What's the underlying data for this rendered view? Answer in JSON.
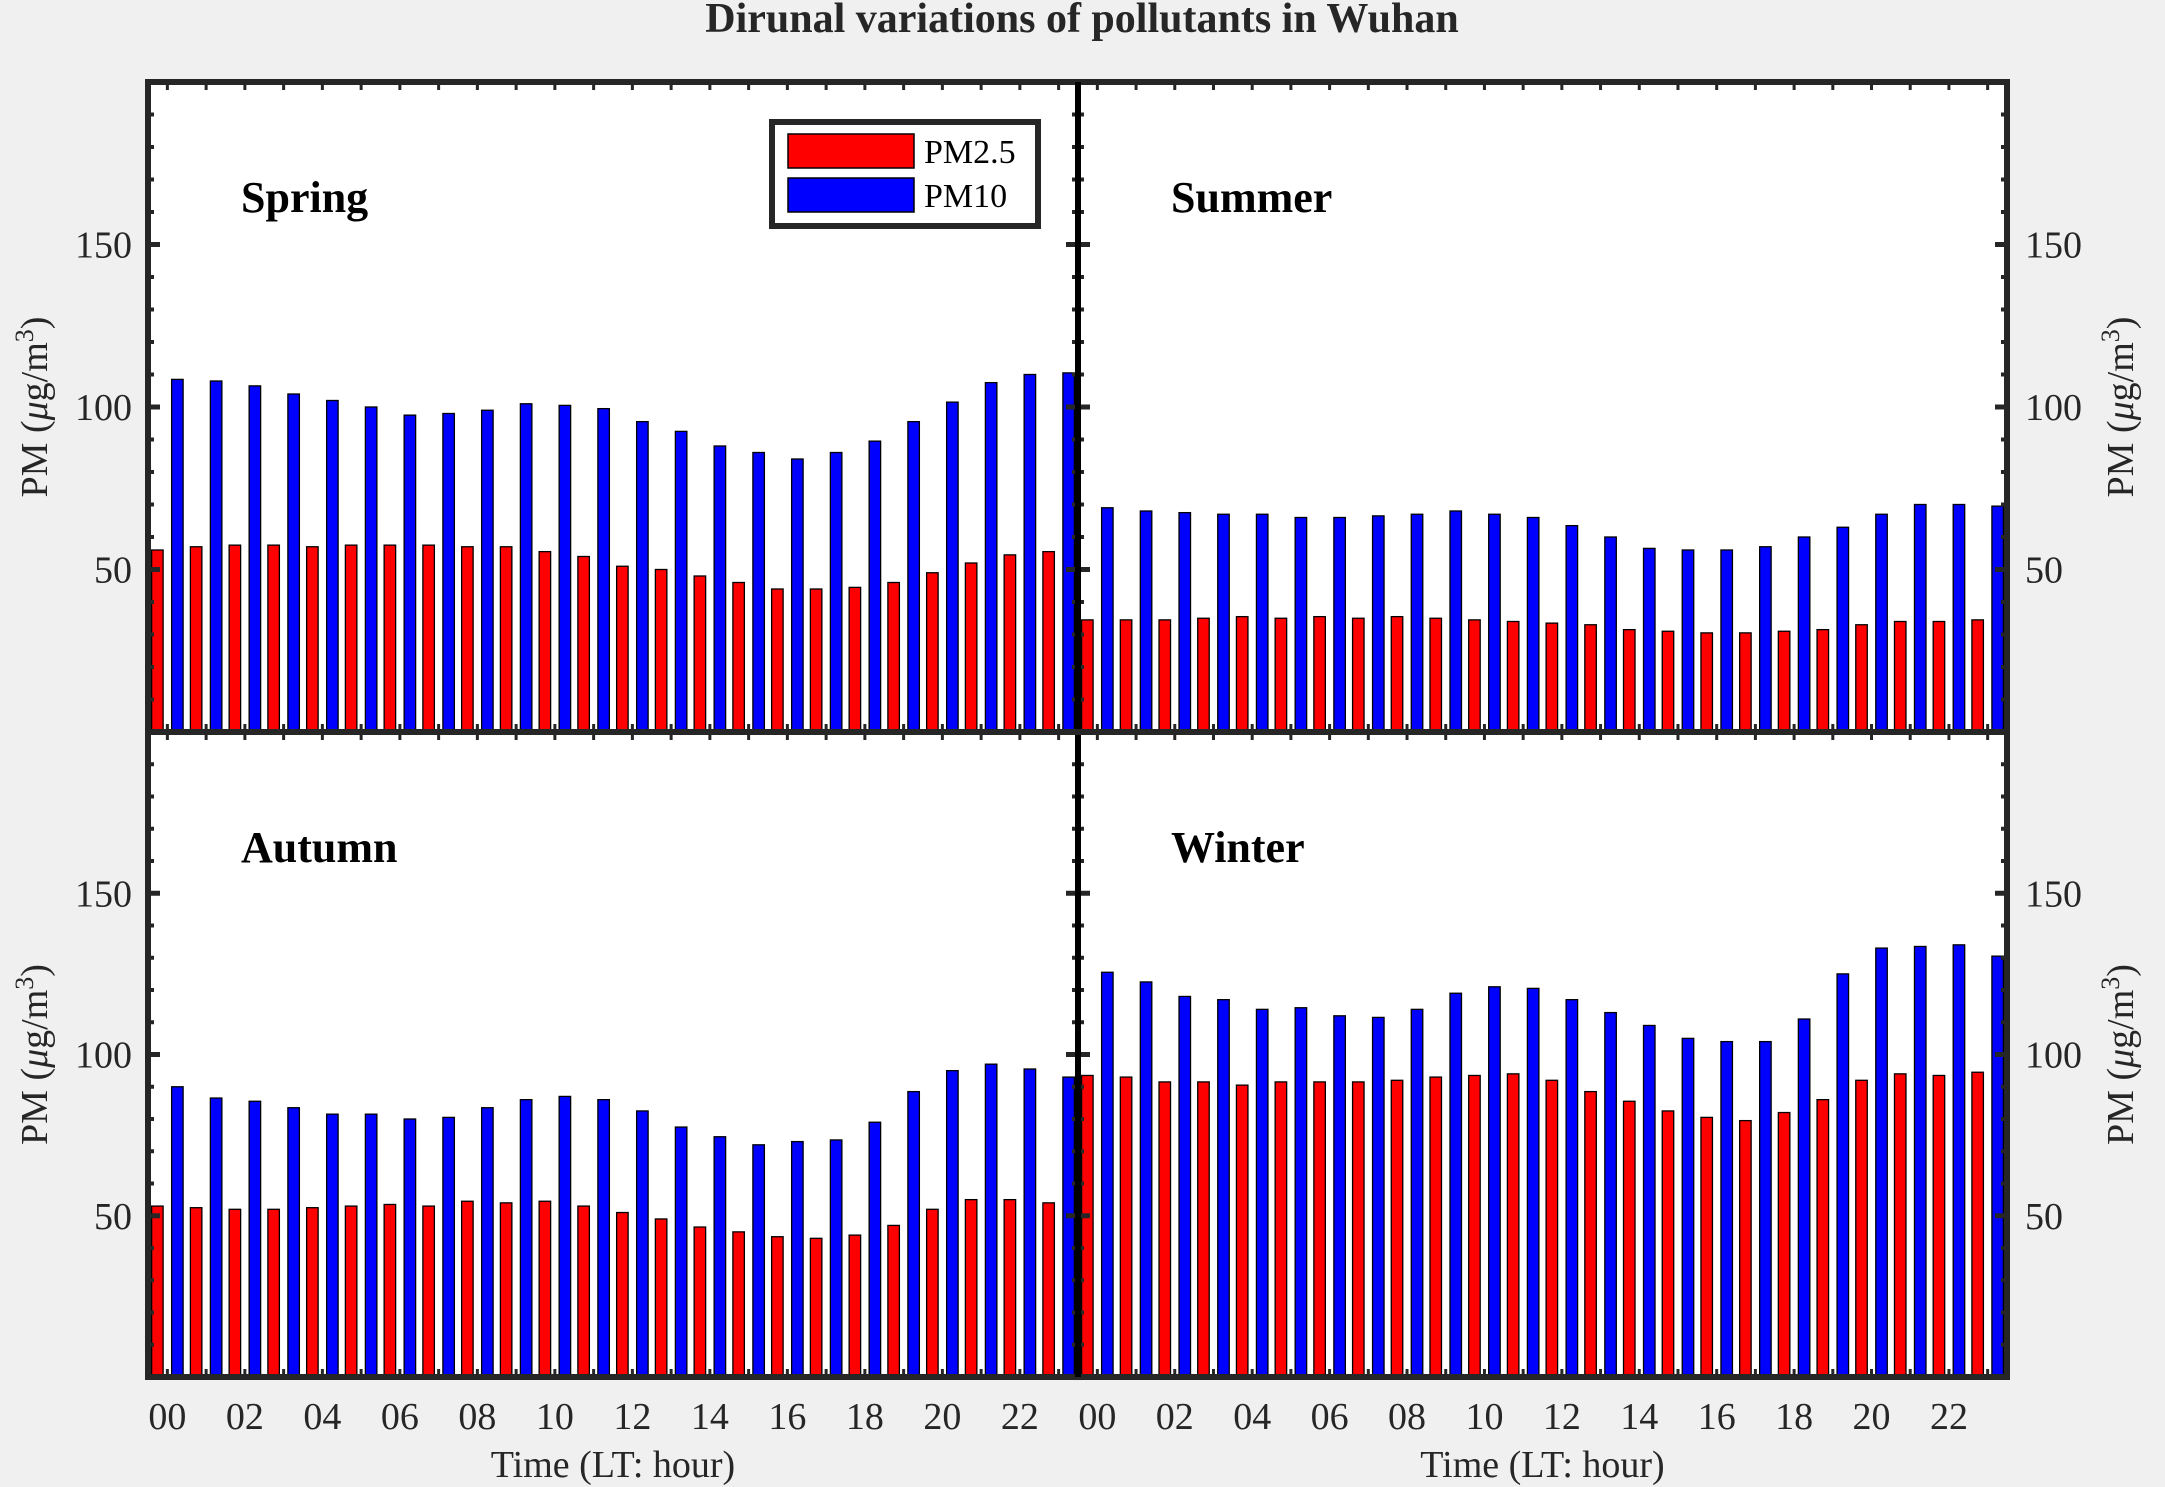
{
  "chart_data": {
    "type": "bar",
    "title": "Dirunal variations of pollutants in Wuhan",
    "xlabel": "Time (LT: hour)",
    "ylabel": "PM (μg/m3)",
    "ylabel_parts": {
      "main": "PM (",
      "mu": "μ",
      "unit": "g/m",
      "sup": "3",
      "close": ")"
    },
    "xtick_labels": [
      "00",
      "02",
      "04",
      "06",
      "08",
      "10",
      "12",
      "14",
      "16",
      "18",
      "20",
      "22"
    ],
    "ytick_labels": [
      "50",
      "100",
      "150"
    ],
    "ylim": [
      0,
      200
    ],
    "grid": false,
    "legend": {
      "placement": "top-right of Spring panel",
      "entries": [
        "PM2.5",
        "PM10"
      ]
    },
    "colors": {
      "PM2.5": "#ff0000",
      "PM10": "#0000ff"
    },
    "categories": [
      "00",
      "01",
      "02",
      "03",
      "04",
      "05",
      "06",
      "07",
      "08",
      "09",
      "10",
      "11",
      "12",
      "13",
      "14",
      "15",
      "16",
      "17",
      "18",
      "19",
      "20",
      "21",
      "22",
      "23"
    ],
    "panels": [
      {
        "name": "Spring",
        "series": [
          {
            "name": "PM2.5",
            "values": [
              56,
              57,
              57.5,
              57.5,
              57,
              57.5,
              57.5,
              57.5,
              57,
              57,
              55.5,
              54,
              51,
              50,
              48,
              46,
              44,
              44,
              44.5,
              46,
              49,
              52,
              54.5,
              55.5
            ]
          },
          {
            "name": "PM10",
            "values": [
              108.5,
              108,
              106.5,
              104,
              102,
              100,
              97.5,
              98,
              99,
              101,
              100.5,
              99.5,
              95.5,
              92.5,
              88,
              86,
              84,
              86,
              89.5,
              95.5,
              101.5,
              107.5,
              110,
              110.5
            ]
          }
        ]
      },
      {
        "name": "Summer",
        "series": [
          {
            "name": "PM2.5",
            "values": [
              34.5,
              34.5,
              34.5,
              35,
              35.5,
              35,
              35.5,
              35,
              35.5,
              35,
              34.5,
              34,
              33.5,
              33,
              31.5,
              31,
              30.5,
              30.5,
              31,
              31.5,
              33,
              34,
              34,
              34.5
            ]
          },
          {
            "name": "PM10",
            "values": [
              69,
              68,
              67.5,
              67,
              67,
              66,
              66,
              66.5,
              67,
              68,
              67,
              66,
              63.5,
              60,
              56.5,
              56,
              56,
              57,
              60,
              63,
              67,
              70,
              70,
              69.5
            ]
          }
        ]
      },
      {
        "name": "Autumn",
        "series": [
          {
            "name": "PM2.5",
            "values": [
              53,
              52.5,
              52,
              52,
              52.5,
              53,
              53.5,
              53,
              54.5,
              54,
              54.5,
              53,
              51,
              49,
              46.5,
              45,
              43.5,
              43,
              44,
              47,
              52,
              55,
              55,
              54
            ]
          },
          {
            "name": "PM10",
            "values": [
              90,
              86.5,
              85.5,
              83.5,
              81.5,
              81.5,
              80,
              80.5,
              83.5,
              86,
              87,
              86,
              82.5,
              77.5,
              74.5,
              72,
              73,
              73.5,
              79,
              88.5,
              95,
              97,
              95.5,
              93
            ]
          }
        ]
      },
      {
        "name": "Winter",
        "series": [
          {
            "name": "PM2.5",
            "values": [
              93.5,
              93,
              91.5,
              91.5,
              90.5,
              91.5,
              91.5,
              91.5,
              92,
              93,
              93.5,
              94,
              92,
              88.5,
              85.5,
              82.5,
              80.5,
              79.5,
              82,
              86,
              92,
              94,
              93.5,
              94.5
            ]
          },
          {
            "name": "PM10",
            "values": [
              125.5,
              122.5,
              118,
              117,
              114,
              114.5,
              112,
              111.5,
              114,
              119,
              121,
              120.5,
              117,
              113,
              109,
              105,
              104,
              104,
              111,
              125,
              133,
              133.5,
              134,
              130.5
            ]
          }
        ]
      }
    ]
  }
}
